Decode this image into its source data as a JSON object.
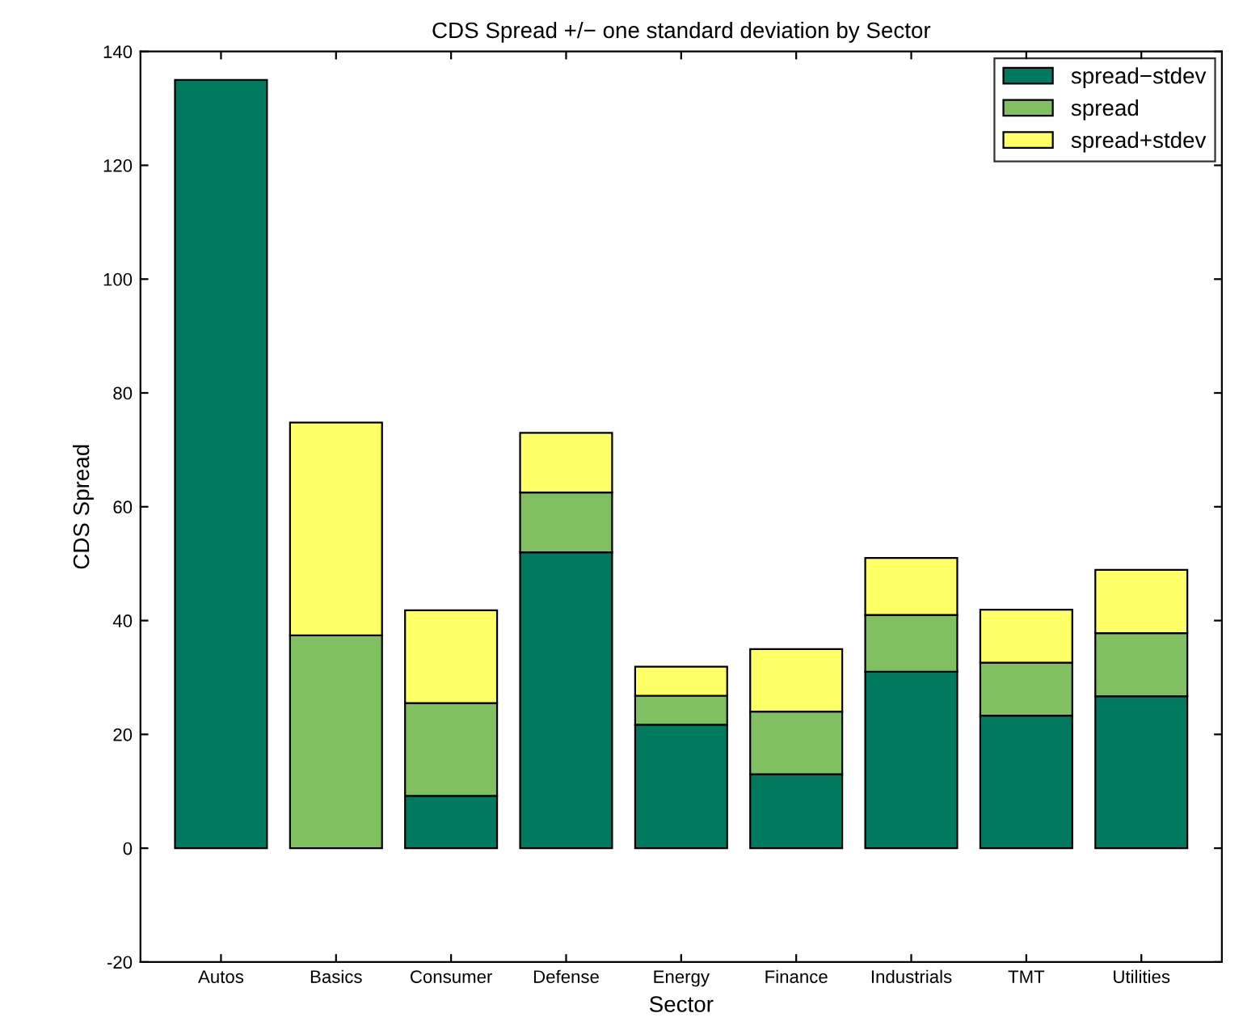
{
  "chart_data": {
    "type": "bar",
    "title": "CDS Spread +/− one standard deviation by Sector",
    "xlabel": "Sector",
    "ylabel": "CDS Spread",
    "categories": [
      "Autos",
      "Basics",
      "Consumer",
      "Defense",
      "Energy",
      "Finance",
      "Industrials",
      "TMT",
      "Utilities"
    ],
    "stacked": true,
    "series": [
      {
        "name": "spread−stdev",
        "color": "#007a5e",
        "values": [
          135,
          null,
          9.2,
          52,
          21.7,
          13,
          31,
          23.3,
          26.7
        ]
      },
      {
        "name": "spread",
        "color": "#80c060",
        "values": [
          null,
          37.4,
          16.3,
          10.5,
          5.1,
          11,
          10,
          9.3,
          11.1
        ]
      },
      {
        "name": "spread+stdev",
        "color": "#ffff66",
        "values": [
          null,
          37.4,
          16.3,
          10.5,
          5.1,
          11,
          10,
          9.3,
          11.1
        ]
      }
    ],
    "ylim": [
      -20,
      140
    ],
    "yticks": [
      -20,
      0,
      20,
      40,
      60,
      80,
      100,
      120,
      140
    ],
    "legend": "top right",
    "grid": false
  }
}
